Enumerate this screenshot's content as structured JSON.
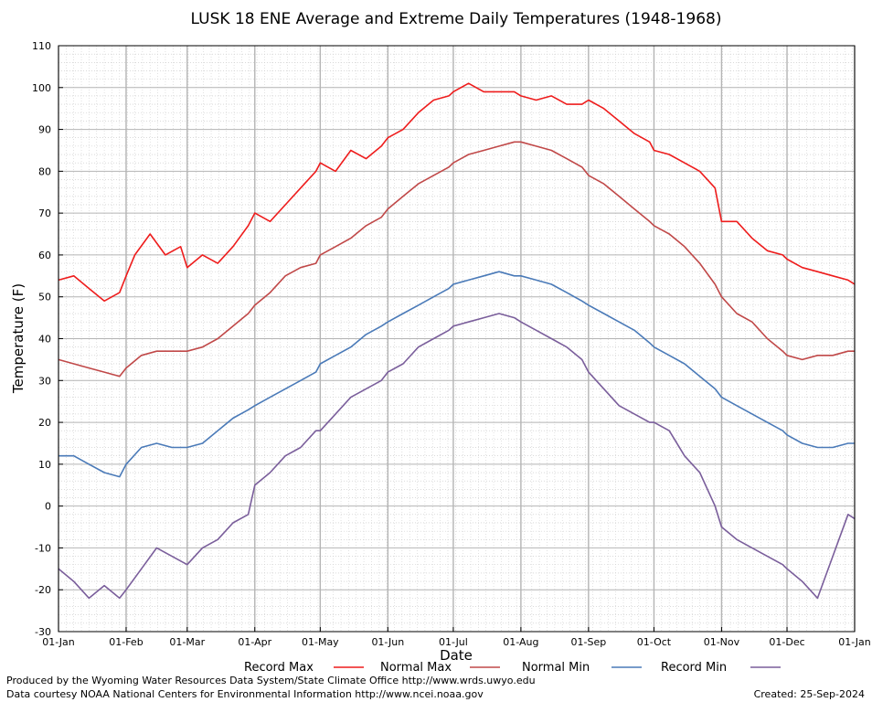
{
  "chart_data": {
    "type": "line",
    "title": "LUSK 18 ENE Average and Extreme Daily Temperatures (1948-1968)",
    "xlabel": "Date",
    "ylabel": "Temperature (F)",
    "ylim": [
      -30,
      110
    ],
    "yticks": [
      -30,
      -20,
      -10,
      0,
      10,
      20,
      30,
      40,
      50,
      60,
      70,
      80,
      90,
      100,
      110
    ],
    "x_ticks": [
      {
        "label": "01-Jan",
        "day": 1
      },
      {
        "label": "01-Feb",
        "day": 32
      },
      {
        "label": "01-Mar",
        "day": 60
      },
      {
        "label": "01-Apr",
        "day": 91
      },
      {
        "label": "01-May",
        "day": 121
      },
      {
        "label": "01-Jun",
        "day": 152
      },
      {
        "label": "01-Jul",
        "day": 182
      },
      {
        "label": "01-Aug",
        "day": 213
      },
      {
        "label": "01-Sep",
        "day": 244
      },
      {
        "label": "01-Oct",
        "day": 274
      },
      {
        "label": "01-Nov",
        "day": 305
      },
      {
        "label": "01-Dec",
        "day": 335
      },
      {
        "label": "01-Jan",
        "day": 366
      }
    ],
    "grid": true,
    "legend_position": "bottom",
    "series": [
      {
        "name": "Record Max",
        "color": "#ee1c1c",
        "x": [
          1,
          8,
          15,
          22,
          29,
          32,
          36,
          43,
          50,
          57,
          60,
          67,
          74,
          81,
          88,
          91,
          98,
          105,
          112,
          119,
          121,
          128,
          135,
          142,
          149,
          152,
          159,
          166,
          173,
          180,
          182,
          189,
          196,
          203,
          210,
          213,
          220,
          227,
          234,
          241,
          244,
          251,
          258,
          265,
          272,
          274,
          281,
          288,
          295,
          302,
          305,
          312,
          319,
          326,
          333,
          335,
          342,
          349,
          356,
          363,
          366
        ],
        "y": [
          54,
          55,
          52,
          49,
          51,
          55,
          60,
          65,
          60,
          62,
          57,
          60,
          58,
          62,
          67,
          70,
          68,
          72,
          76,
          80,
          82,
          80,
          85,
          83,
          86,
          88,
          90,
          94,
          97,
          98,
          99,
          101,
          99,
          99,
          99,
          98,
          97,
          98,
          96,
          96,
          97,
          95,
          92,
          89,
          87,
          85,
          84,
          82,
          80,
          76,
          68,
          68,
          64,
          61,
          60,
          59,
          57,
          56,
          55,
          54,
          53
        ]
      },
      {
        "name": "Normal Max",
        "color": "#c04848",
        "x": [
          1,
          8,
          15,
          22,
          29,
          32,
          39,
          46,
          53,
          60,
          67,
          74,
          81,
          88,
          91,
          98,
          105,
          112,
          119,
          121,
          128,
          135,
          142,
          149,
          152,
          159,
          166,
          173,
          180,
          182,
          189,
          196,
          203,
          210,
          213,
          220,
          227,
          234,
          241,
          244,
          251,
          258,
          265,
          272,
          274,
          281,
          288,
          295,
          302,
          305,
          312,
          319,
          326,
          333,
          335,
          342,
          349,
          356,
          363,
          366
        ],
        "y": [
          35,
          34,
          33,
          32,
          31,
          33,
          36,
          37,
          37,
          37,
          38,
          40,
          43,
          46,
          48,
          51,
          55,
          57,
          58,
          60,
          62,
          64,
          67,
          69,
          71,
          74,
          77,
          79,
          81,
          82,
          84,
          85,
          86,
          87,
          87,
          86,
          85,
          83,
          81,
          79,
          77,
          74,
          71,
          68,
          67,
          65,
          62,
          58,
          53,
          50,
          46,
          44,
          40,
          37,
          36,
          35,
          36,
          36,
          37,
          37
        ]
      },
      {
        "name": "Normal Min",
        "color": "#4a7ab8",
        "x": [
          1,
          8,
          15,
          22,
          29,
          32,
          39,
          46,
          53,
          60,
          67,
          74,
          81,
          88,
          91,
          98,
          105,
          112,
          119,
          121,
          128,
          135,
          142,
          149,
          152,
          159,
          166,
          173,
          180,
          182,
          189,
          196,
          203,
          210,
          213,
          220,
          227,
          234,
          241,
          244,
          251,
          258,
          265,
          272,
          274,
          281,
          288,
          295,
          302,
          305,
          312,
          319,
          326,
          333,
          335,
          342,
          349,
          356,
          363,
          366
        ],
        "y": [
          12,
          12,
          10,
          8,
          7,
          10,
          14,
          15,
          14,
          14,
          15,
          18,
          21,
          23,
          24,
          26,
          28,
          30,
          32,
          34,
          36,
          38,
          41,
          43,
          44,
          46,
          48,
          50,
          52,
          53,
          54,
          55,
          56,
          55,
          55,
          54,
          53,
          51,
          49,
          48,
          46,
          44,
          42,
          39,
          38,
          36,
          34,
          31,
          28,
          26,
          24,
          22,
          20,
          18,
          17,
          15,
          14,
          14,
          15,
          15
        ]
      },
      {
        "name": "Record Min",
        "color": "#7a5e9b",
        "x": [
          1,
          8,
          15,
          22,
          29,
          32,
          39,
          46,
          53,
          60,
          67,
          74,
          81,
          88,
          91,
          98,
          105,
          112,
          119,
          121,
          128,
          135,
          142,
          149,
          152,
          159,
          166,
          173,
          180,
          182,
          189,
          196,
          203,
          210,
          213,
          220,
          227,
          234,
          241,
          244,
          251,
          258,
          265,
          272,
          274,
          281,
          288,
          295,
          302,
          305,
          312,
          319,
          326,
          333,
          335,
          342,
          349,
          356,
          363,
          366
        ],
        "y": [
          -15,
          -18,
          -22,
          -19,
          -22,
          -20,
          -15,
          -10,
          -12,
          -14,
          -10,
          -8,
          -4,
          -2,
          5,
          8,
          12,
          14,
          18,
          18,
          22,
          26,
          28,
          30,
          32,
          34,
          38,
          40,
          42,
          43,
          44,
          45,
          46,
          45,
          44,
          42,
          40,
          38,
          35,
          32,
          28,
          24,
          22,
          20,
          20,
          18,
          12,
          8,
          0,
          -5,
          -8,
          -10,
          -12,
          -14,
          -15,
          -18,
          -22,
          -12,
          -2,
          -3
        ]
      }
    ]
  },
  "footer": {
    "produced_by": "Produced by the Wyoming Water Resources Data System/State Climate Office http://www.wrds.uwyo.edu",
    "courtesy": "Data courtesy NOAA National Centers for Environmental Information http://www.ncei.noaa.gov",
    "created": "Created:  25-Sep-2024"
  }
}
